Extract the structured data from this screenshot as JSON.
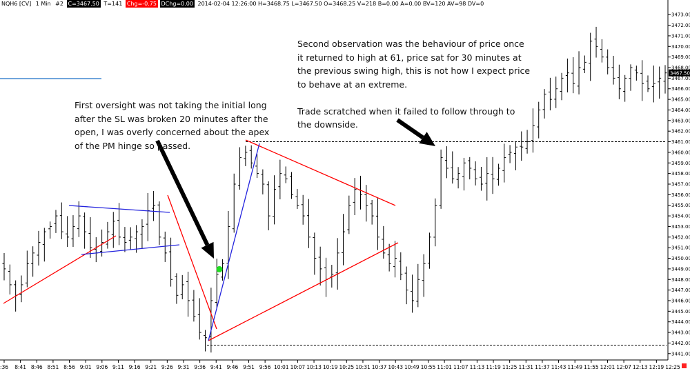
{
  "header": {
    "symbol": "NQH6 [CV]",
    "interval": "1 Min",
    "num": "#2",
    "close": "C=3467.50",
    "ticks": "T=141",
    "chg": "Chg=-0.75",
    "dchg": "DChg=0.00",
    "details": "2014-02-04 12:26:00 H=3468.75 L=3467.50 O=3468.25 V=218 B=0.00 A=0.00 BV=120 AV=98 DV=0"
  },
  "annotations": {
    "note1": "First oversight was not taking the initial long\nafter the SL was broken 20 minutes after the\nopen, I was overly concerned about the apex\nof the PM hinge so passed.",
    "note2": "Second observation was the behaviour of price once\nit returned to high at 61, price sat for 30 minutes at\nthe previous swing high, this is not how I expect price\nto behave at an extreme.\n\nTrade scratched when it failed to follow through to\nthe downside."
  },
  "colors": {
    "bars": "#000000",
    "trendline_red": "#ff0000",
    "trendline_blue": "#2222dd",
    "reference_blue": "#1a6fc8",
    "marker_green": "#22dd22",
    "price_badge": "#000000",
    "corner_box": "#ff2222"
  },
  "chart_data": {
    "type": "ohlc",
    "title": "",
    "ylim": [
      3440.4,
      3473.6
    ],
    "y_ticks": [
      3441,
      3442,
      3443,
      3444,
      3445,
      3446,
      3447,
      3448,
      3449,
      3450,
      3451,
      3452,
      3453,
      3454,
      3455,
      3456,
      3457,
      3458,
      3459,
      3460,
      3461,
      3462,
      3463,
      3464,
      3465,
      3466,
      3467,
      3468,
      3469,
      3470,
      3471,
      3472,
      3473
    ],
    "y_tick_labels": [
      "3441.00",
      "3442.00",
      "3443.00",
      "3444.00",
      "3445.00",
      "3446.00",
      "3447.00",
      "3448.00",
      "3449.00",
      "3450.00",
      "3451.00",
      "3452.00",
      "3453.00",
      "3454.00",
      "3455.00",
      "3456.00",
      "3457.00",
      "3458.00",
      "3459.00",
      "3460.00",
      "3461.00",
      "3462.00",
      "3463.00",
      "3464.00",
      "3465.00",
      "3466.00",
      "3467.00",
      "3468.00",
      "3469.00",
      "3470.00",
      "3471.00",
      "3472.00",
      "3473.00"
    ],
    "x_tick_labels": [
      ":36",
      "8:41",
      "8:46",
      "8:51",
      "8:56",
      "9:01",
      "9:06",
      "9:11",
      "9:16",
      "9:21",
      "9:26",
      "9:31",
      "9:36",
      "9:41",
      "9:46",
      "9:51",
      "9:56",
      "10:01",
      "10:07",
      "10:13",
      "10:19",
      "10:25",
      "10:31",
      "10:37",
      "10:43",
      "10:49",
      "10:55",
      "11:01",
      "11:07",
      "11:13",
      "11:19",
      "11:25",
      "11:31",
      "11:37",
      "11:43",
      "11:49",
      "11:55",
      "12:01",
      "12:07",
      "12:13",
      "12:19",
      "12:25"
    ],
    "last_price": "3467.50",
    "approx_minute_closes": [
      3449.0,
      3447.5,
      3446.5,
      3447.5,
      3449.5,
      3450.5,
      3451.5,
      3452.5,
      3453.0,
      3454.0,
      3452.5,
      3452.0,
      3453.0,
      3454.0,
      3452.5,
      3451.0,
      3450.5,
      3451.5,
      3452.5,
      3453.5,
      3452.0,
      3451.5,
      3452.0,
      3452.5,
      3453.0,
      3454.5,
      3455.0,
      3452.0,
      3450.5,
      3448.0,
      3446.5,
      3447.5,
      3446.0,
      3444.5,
      3443.0,
      3442.5,
      3446.0,
      3448.5,
      3449.5,
      3453.0,
      3457.0,
      3459.5,
      3460.0,
      3459.0,
      3458.0,
      3457.0,
      3454.0,
      3456.5,
      3458.0,
      3457.5,
      3456.0,
      3455.0,
      3454.0,
      3452.0,
      3450.0,
      3449.0,
      3448.0,
      3448.5,
      3450.5,
      3452.5,
      3455.0,
      3456.5,
      3456.0,
      3455.0,
      3454.0,
      3452.0,
      3450.5,
      3449.5,
      3450.0,
      3448.5,
      3447.0,
      3446.0,
      3448.0,
      3449.5,
      3452.0,
      3455.0,
      3459.5,
      3458.5,
      3457.5,
      3458.0,
      3459.0,
      3458.5,
      3457.5,
      3457.0,
      3458.0,
      3457.5,
      3458.5,
      3459.5,
      3460.0,
      3460.5,
      3460.5,
      3461.0,
      3462.5,
      3464.0,
      3465.5,
      3465.0,
      3466.0,
      3467.0,
      3467.5,
      3466.5,
      3468.0,
      3468.5,
      3470.5,
      3470.0,
      3469.0,
      3468.0,
      3467.0,
      3466.0,
      3467.0,
      3468.0,
      3467.5,
      3466.5,
      3466.0,
      3466.5,
      3467.0,
      3467.5
    ],
    "levels": [
      3461.0,
      3441.8
    ],
    "marker": {
      "x_label": "9:51",
      "y": 3449.0
    },
    "arrows": [
      {
        "from": [
          228,
          204
        ],
        "to": [
          310,
          375
        ]
      },
      {
        "from": [
          576,
          174
        ],
        "to": [
          631,
          212
        ]
      }
    ]
  }
}
